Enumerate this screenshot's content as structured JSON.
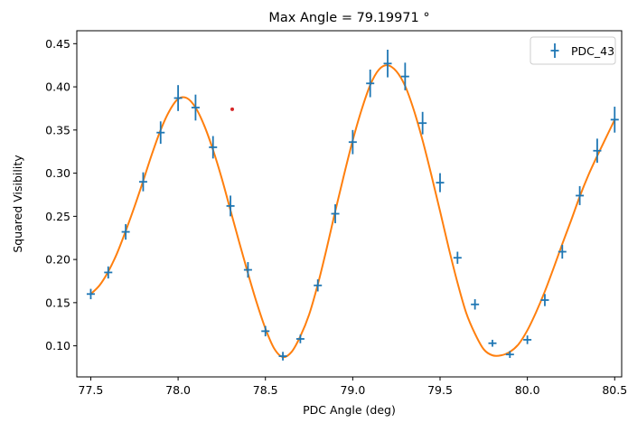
{
  "chart_data": {
    "type": "scatter",
    "title": "Max Angle = 79.19971 °",
    "xlabel": "PDC Angle (deg)",
    "ylabel": "Squared Visibility",
    "xlim": [
      77.42,
      80.54
    ],
    "ylim": [
      0.064,
      0.465
    ],
    "xticks": [
      "77.5",
      "78.0",
      "78.5",
      "79.0",
      "79.5",
      "80.0",
      "80.5"
    ],
    "yticks": [
      "0.10",
      "0.15",
      "0.20",
      "0.25",
      "0.30",
      "0.35",
      "0.40",
      "0.45"
    ],
    "grid": false,
    "legend_position": "top-right",
    "series": [
      {
        "name": "PDC_43",
        "style": "errorbar",
        "color": "#1f77b4",
        "x": [
          77.5,
          77.6,
          77.7,
          77.8,
          77.9,
          78.0,
          78.1,
          78.2,
          78.3,
          78.4,
          78.5,
          78.6,
          78.7,
          78.8,
          78.9,
          79.0,
          79.1,
          79.2,
          79.3,
          79.4,
          79.5,
          79.6,
          79.7,
          79.8,
          79.9,
          80.0,
          80.1,
          80.2,
          80.3,
          80.4,
          80.5
        ],
        "y": [
          0.16,
          0.185,
          0.232,
          0.29,
          0.347,
          0.387,
          0.376,
          0.33,
          0.262,
          0.188,
          0.117,
          0.088,
          0.108,
          0.17,
          0.253,
          0.336,
          0.404,
          0.427,
          0.412,
          0.358,
          0.289,
          0.202,
          0.148,
          0.103,
          0.09,
          0.107,
          0.153,
          0.209,
          0.274,
          0.326,
          0.362
        ],
        "yerr": [
          0.006,
          0.007,
          0.009,
          0.011,
          0.013,
          0.015,
          0.015,
          0.013,
          0.012,
          0.009,
          0.006,
          0.005,
          0.005,
          0.007,
          0.011,
          0.014,
          0.016,
          0.016,
          0.016,
          0.013,
          0.011,
          0.007,
          0.006,
          0.004,
          0.004,
          0.005,
          0.007,
          0.008,
          0.011,
          0.014,
          0.015
        ]
      },
      {
        "style": "line",
        "color": "#ff7f0e",
        "x": [
          77.5,
          77.55,
          77.6,
          77.65,
          77.7,
          77.75,
          77.8,
          77.85,
          77.9,
          77.95,
          78.0,
          78.05,
          78.1,
          78.15,
          78.2,
          78.25,
          78.3,
          78.35,
          78.4,
          78.45,
          78.5,
          78.55,
          78.6,
          78.65,
          78.7,
          78.75,
          78.8,
          78.85,
          78.9,
          78.95,
          79.0,
          79.05,
          79.1,
          79.15,
          79.2,
          79.25,
          79.3,
          79.35,
          79.4,
          79.45,
          79.5,
          79.55,
          79.6,
          79.65,
          79.7,
          79.75,
          79.8,
          79.85,
          79.9,
          79.95,
          80.0,
          80.05,
          80.1,
          80.15,
          80.2,
          80.25,
          80.3,
          80.35,
          80.4,
          80.45,
          80.5
        ],
        "y": [
          0.16,
          0.17,
          0.186,
          0.207,
          0.233,
          0.261,
          0.291,
          0.322,
          0.35,
          0.372,
          0.386,
          0.387,
          0.376,
          0.355,
          0.327,
          0.294,
          0.257,
          0.22,
          0.184,
          0.15,
          0.12,
          0.097,
          0.087,
          0.093,
          0.111,
          0.136,
          0.171,
          0.212,
          0.256,
          0.298,
          0.338,
          0.373,
          0.402,
          0.42,
          0.425,
          0.418,
          0.401,
          0.373,
          0.338,
          0.298,
          0.256,
          0.213,
          0.173,
          0.138,
          0.114,
          0.096,
          0.089,
          0.089,
          0.093,
          0.102,
          0.118,
          0.139,
          0.163,
          0.19,
          0.218,
          0.245,
          0.273,
          0.298,
          0.32,
          0.341,
          0.362
        ]
      },
      {
        "style": "marker",
        "color": "#d62728",
        "x": [
          78.31
        ],
        "y": [
          0.374
        ]
      }
    ]
  }
}
